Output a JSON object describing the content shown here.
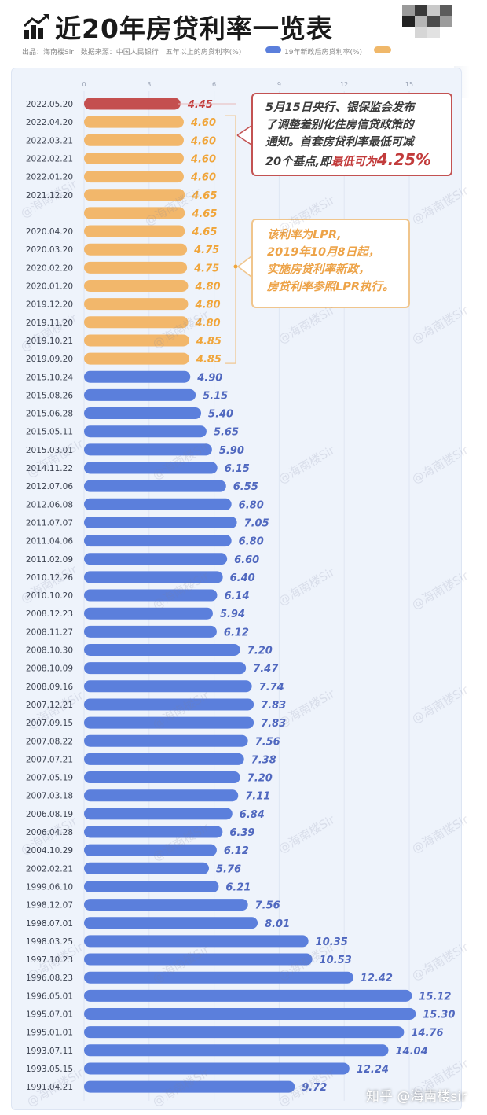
{
  "header": {
    "title": "近20年房贷利率一览表",
    "source_prefix": "出品：海南楼Sir",
    "source_data": "数据来源：中国人民银行",
    "source_desc": "五年以上的房贷利率(%)",
    "legend_blue_label": "19年新政后房贷利率(%)"
  },
  "annotations": {
    "box1": {
      "line1": "5月15日央行、银保监会发布",
      "line2": "了调整差别化住房信贷政策的",
      "line3": "通知。首套房贷利率最低可减",
      "line4_a": "20个基点,即",
      "line4_b": "最低可为",
      "line4_c": "4.25%"
    },
    "box2": {
      "line1": "该利率为LPR,",
      "line2": "2019年10月8日起，",
      "line3": "实施房贷利率新政，",
      "line4": "房贷利率参照LPR执行。"
    }
  },
  "watermark": "@海南楼Sir",
  "footer": {
    "brand": "知乎 @海南楼sir"
  },
  "colors": {
    "highlight": "#c44f4f",
    "lpr": "#f2b76b",
    "legacy": "#5b7fdc",
    "label_highlight": "#c23b3b",
    "label_lpr": "#f0a53a",
    "label_legacy": "#5068bf"
  },
  "chart_data": {
    "type": "bar",
    "orientation": "horizontal",
    "x_ticks": [
      "0",
      "3",
      "6",
      "9",
      "12",
      "15"
    ],
    "xlim": [
      0,
      18
    ],
    "categories": [
      "2022.05.20",
      "2022.04.20",
      "2022.03.21",
      "2022.02.21",
      "2022.01.20",
      "2021.12.20",
      "",
      "2020.04.20",
      "2020.03.20",
      "2020.02.20",
      "2020.01.20",
      "2019.12.20",
      "2019.11.20",
      "2019.10.21",
      "2019.09.20",
      "2015.10.24",
      "2015.08.26",
      "2015.06.28",
      "2015.05.11",
      "2015.03.01",
      "2014.11.22",
      "2012.07.06",
      "2012.06.08",
      "2011.07.07",
      "2011.04.06",
      "2011.02.09",
      "2010.12.26",
      "2010.10.20",
      "2008.12.23",
      "2008.11.27",
      "2008.10.30",
      "2008.10.09",
      "2008.09.16",
      "2007.12.21",
      "2007.09.15",
      "2007.08.22",
      "2007.07.21",
      "2007.05.19",
      "2007.03.18",
      "2006.08.19",
      "2006.04.28",
      "2004.10.29",
      "2002.02.21",
      "1999.06.10",
      "1998.12.07",
      "1998.07.01",
      "1998.03.25",
      "1997.10.23",
      "1996.08.23",
      "1996.05.01",
      "1995.07.01",
      "1995.01.01",
      "1993.07.11",
      "1993.05.15",
      "1991.04.21"
    ],
    "values": [
      4.45,
      4.6,
      4.6,
      4.6,
      4.6,
      4.65,
      4.65,
      4.65,
      4.75,
      4.75,
      4.8,
      4.8,
      4.8,
      4.85,
      4.85,
      4.9,
      5.15,
      5.4,
      5.65,
      5.9,
      6.15,
      6.55,
      6.8,
      7.05,
      6.8,
      6.6,
      6.4,
      6.14,
      5.94,
      6.12,
      7.2,
      7.47,
      7.74,
      7.83,
      7.83,
      7.56,
      7.38,
      7.2,
      7.11,
      6.84,
      6.39,
      6.12,
      5.76,
      6.21,
      7.56,
      8.01,
      10.35,
      10.53,
      12.42,
      15.12,
      15.3,
      14.76,
      14.04,
      12.24,
      9.72
    ],
    "value_labels": [
      "4.45",
      "4.60",
      "4.60",
      "4.60",
      "4.60",
      "4.65",
      "4.65",
      "4.65",
      "4.75",
      "4.75",
      "4.80",
      "4.80",
      "4.80",
      "4.85",
      "4.85",
      "4.90",
      "5.15",
      "5.40",
      "5.65",
      "5.90",
      "6.15",
      "6.55",
      "6.80",
      "7.05",
      "6.80",
      "6.60",
      "6.40",
      "6.14",
      "5.94",
      "6.12",
      "7.20",
      "7.47",
      "7.74",
      "7.83",
      "7.83",
      "7.56",
      "7.38",
      "7.20",
      "7.11",
      "6.84",
      "6.39",
      "6.12",
      "5.76",
      "6.21",
      "7.56",
      "8.01",
      "10.35",
      "10.53",
      "12.42",
      "15.12",
      "15.30",
      "14.76",
      "14.04",
      "12.24",
      "9.72"
    ],
    "groups": [
      "highlight",
      "lpr",
      "lpr",
      "lpr",
      "lpr",
      "lpr",
      "lpr",
      "lpr",
      "lpr",
      "lpr",
      "lpr",
      "lpr",
      "lpr",
      "lpr",
      "lpr",
      "legacy",
      "legacy",
      "legacy",
      "legacy",
      "legacy",
      "legacy",
      "legacy",
      "legacy",
      "legacy",
      "legacy",
      "legacy",
      "legacy",
      "legacy",
      "legacy",
      "legacy",
      "legacy",
      "legacy",
      "legacy",
      "legacy",
      "legacy",
      "legacy",
      "legacy",
      "legacy",
      "legacy",
      "legacy",
      "legacy",
      "legacy",
      "legacy",
      "legacy",
      "legacy",
      "legacy",
      "legacy",
      "legacy",
      "legacy",
      "legacy",
      "legacy",
      "legacy",
      "legacy",
      "legacy",
      "legacy"
    ],
    "legend": [
      {
        "label": "19年新政后房贷利率(%)",
        "color": "#5b7fdc"
      }
    ],
    "grid": true
  }
}
